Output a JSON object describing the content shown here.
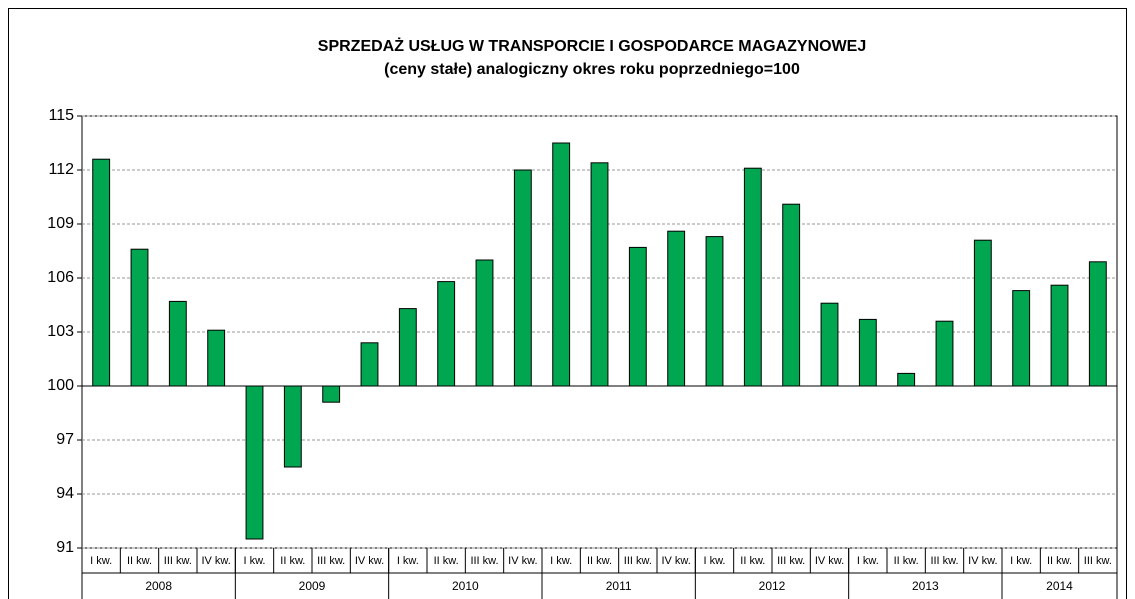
{
  "chart_data": {
    "type": "bar",
    "title": "SPRZEDAŻ USŁUG W TRANSPORCIE  I GOSPODARCE MAGAZYNOWEJ",
    "subtitle": "(ceny stałe)  analogiczny okres roku poprzedniego=100",
    "categories": [
      "I kw.",
      "II kw.",
      "III kw.",
      "IV kw.",
      "I kw.",
      "II kw.",
      "III kw.",
      "IV kw.",
      "I kw.",
      "II kw.",
      "III kw.",
      "IV kw.",
      "I kw.",
      "II kw.",
      "III kw.",
      "IV kw.",
      "I kw.",
      "II kw.",
      "III kw.",
      "IV kw.",
      "I kw.",
      "II kw.",
      "III kw.",
      "IV kw.",
      "I kw.",
      "II kw.",
      "III kw."
    ],
    "groups": [
      {
        "name": "2008",
        "count": 4
      },
      {
        "name": "2009",
        "count": 4
      },
      {
        "name": "2010",
        "count": 4
      },
      {
        "name": "2011",
        "count": 4
      },
      {
        "name": "2012",
        "count": 4
      },
      {
        "name": "2013",
        "count": 4
      },
      {
        "name": "2014",
        "count": 3
      }
    ],
    "values": [
      112.6,
      107.6,
      104.7,
      103.1,
      91.5,
      95.5,
      99.1,
      102.4,
      104.3,
      105.8,
      107.0,
      112.0,
      113.5,
      112.4,
      107.7,
      108.6,
      108.3,
      112.1,
      110.1,
      104.6,
      103.7,
      100.7,
      103.6,
      108.1,
      105.3,
      105.6,
      106.9
    ],
    "color": "#00a650",
    "baseline": 100,
    "ylim": [
      91,
      115
    ],
    "yticks": [
      91,
      94,
      97,
      100,
      103,
      106,
      109,
      112,
      115
    ],
    "grid": true
  }
}
